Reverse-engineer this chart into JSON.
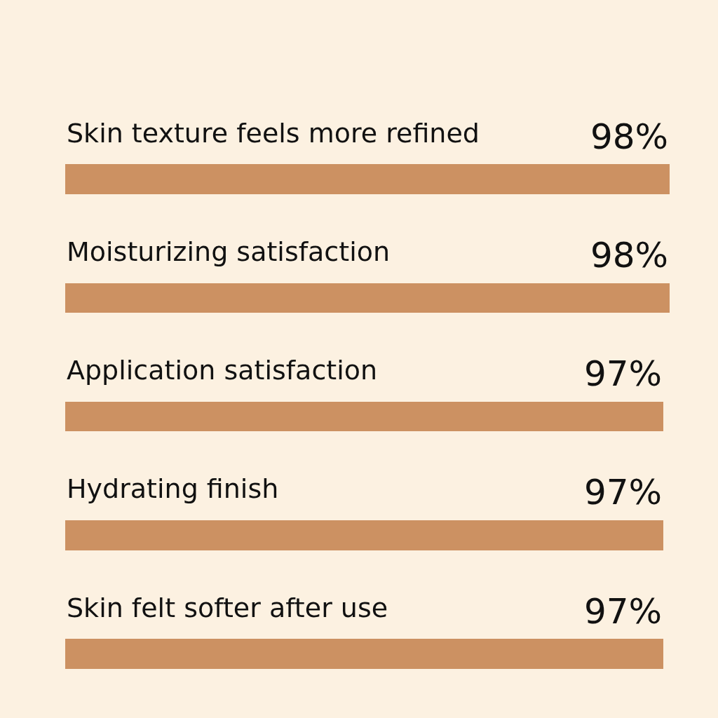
{
  "chart_data": {
    "type": "bar",
    "orientation": "horizontal",
    "categories": [
      "Skin texture feels more refined",
      "Moisturizing satisfaction",
      "Application satisfaction",
      "Hydrating finish",
      "Skin felt softer after use"
    ],
    "values": [
      98,
      98,
      97,
      97,
      97
    ],
    "value_labels": [
      "98%",
      "98%",
      "97%",
      "97%",
      "97%"
    ],
    "color": "#cc9162",
    "tick_labels": false,
    "legend": false
  }
}
